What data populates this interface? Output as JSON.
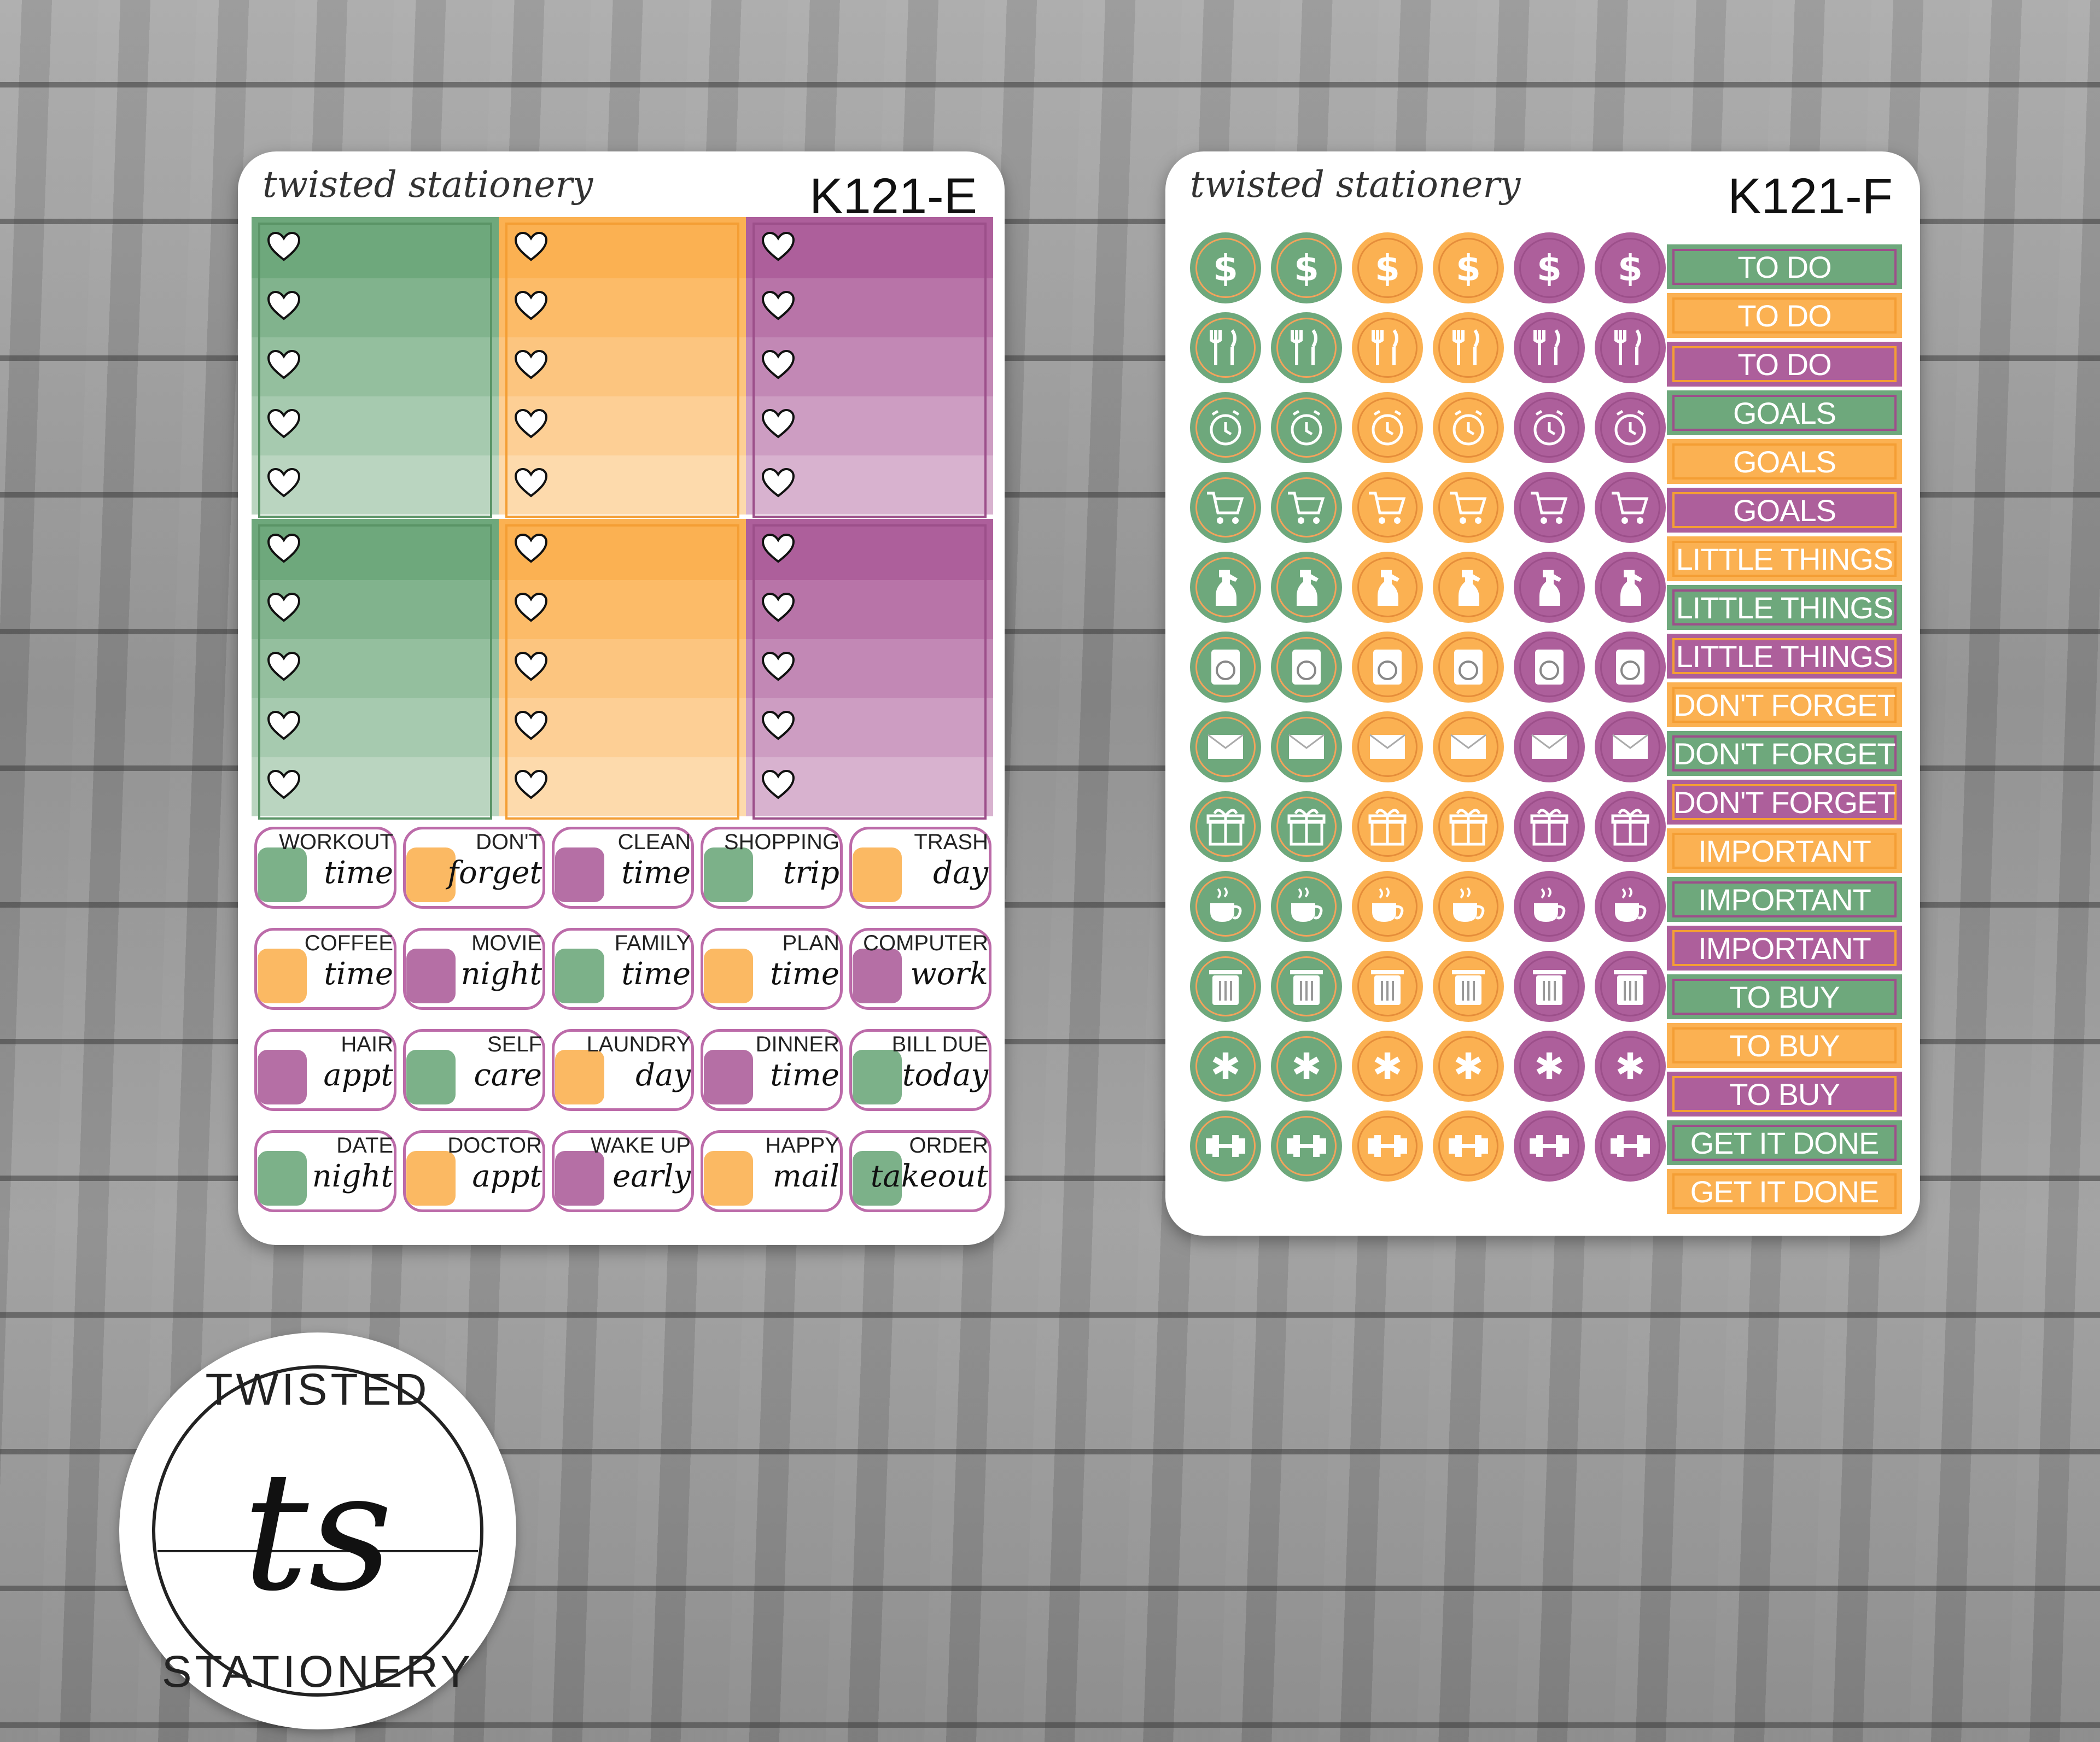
{
  "colors": {
    "green": "#6ea87c",
    "orange": "#fbb152",
    "purple": "#ad5f9b",
    "dark_green": "#5a9466",
    "dark_orange": "#f49e34",
    "dark_purple": "#9c4f8a"
  },
  "sheet_e": {
    "brand": "twisted stationery",
    "sku": "K121-E",
    "boxes": [
      {
        "color": "green"
      },
      {
        "color": "orange"
      },
      {
        "color": "purple"
      },
      {
        "color": "green"
      },
      {
        "color": "orange"
      },
      {
        "color": "purple"
      }
    ],
    "word_stickers": [
      {
        "line1": "WORKOUT",
        "line2": "time",
        "icon": "dumbbell-icon"
      },
      {
        "line1": "DON'T",
        "line2": "forget",
        "icon": "asterisk-icon"
      },
      {
        "line1": "CLEAN",
        "line2": "time",
        "icon": "spray-bottle-icon"
      },
      {
        "line1": "SHOPPING",
        "line2": "trip",
        "icon": "cart-icon"
      },
      {
        "line1": "TRASH",
        "line2": "day",
        "icon": "trash-icon"
      },
      {
        "line1": "COFFEE",
        "line2": "time",
        "icon": "coffee-cup-icon"
      },
      {
        "line1": "MOVIE",
        "line2": "night",
        "icon": "clapperboard-icon"
      },
      {
        "line1": "FAMILY",
        "line2": "time",
        "icon": "heart-icon"
      },
      {
        "line1": "PLAN",
        "line2": "time",
        "icon": "planner-icon"
      },
      {
        "line1": "COMPUTER",
        "line2": "work",
        "icon": "laptop-icon"
      },
      {
        "line1": "HAIR",
        "line2": "appt",
        "icon": "scissors-comb-icon"
      },
      {
        "line1": "SELF",
        "line2": "care",
        "icon": "face-mask-icon"
      },
      {
        "line1": "LAUNDRY",
        "line2": "day",
        "icon": "hanger-icon"
      },
      {
        "line1": "DINNER",
        "line2": "time",
        "icon": "utensils-icon"
      },
      {
        "line1": "BILL DUE",
        "line2": "today",
        "icon": "money-icon"
      },
      {
        "line1": "DATE",
        "line2": "night",
        "icon": "wine-glasses-icon"
      },
      {
        "line1": "DOCTOR",
        "line2": "appt",
        "icon": "stethoscope-icon"
      },
      {
        "line1": "WAKE UP",
        "line2": "early",
        "icon": "alarm-clock-icon"
      },
      {
        "line1": "HAPPY",
        "line2": "mail",
        "icon": "package-icon"
      },
      {
        "line1": "ORDER",
        "line2": "takeout",
        "icon": "takeout-icon"
      }
    ]
  },
  "sheet_f": {
    "brand": "twisted stationery",
    "sku": "K121-F",
    "icon_rows": [
      {
        "icon": "dollar-icon",
        "glyph": "$"
      },
      {
        "icon": "fork-knife-icon",
        "glyph": ""
      },
      {
        "icon": "alarm-clock-icon",
        "glyph": ""
      },
      {
        "icon": "cart-icon",
        "glyph": ""
      },
      {
        "icon": "spray-bottle-icon",
        "glyph": ""
      },
      {
        "icon": "washing-machine-icon",
        "glyph": ""
      },
      {
        "icon": "envelope-icon",
        "glyph": ""
      },
      {
        "icon": "gift-icon",
        "glyph": ""
      },
      {
        "icon": "coffee-cup-icon",
        "glyph": ""
      },
      {
        "icon": "trash-icon",
        "glyph": ""
      },
      {
        "icon": "asterisk-icon",
        "glyph": "✱"
      },
      {
        "icon": "dumbbell-icon",
        "glyph": ""
      }
    ],
    "labels": [
      {
        "text": "TO DO",
        "color": "green"
      },
      {
        "text": "TO DO",
        "color": "orange"
      },
      {
        "text": "TO DO",
        "color": "purple"
      },
      {
        "text": "GOALS",
        "color": "green"
      },
      {
        "text": "GOALS",
        "color": "orange"
      },
      {
        "text": "GOALS",
        "color": "purple"
      },
      {
        "text": "LITTLE THINGS",
        "color": "orange"
      },
      {
        "text": "LITTLE THINGS",
        "color": "green"
      },
      {
        "text": "LITTLE THINGS",
        "color": "purple"
      },
      {
        "text": "DON'T FORGET",
        "color": "orange"
      },
      {
        "text": "DON'T FORGET",
        "color": "green"
      },
      {
        "text": "DON'T FORGET",
        "color": "purple"
      },
      {
        "text": "IMPORTANT",
        "color": "orange"
      },
      {
        "text": "IMPORTANT",
        "color": "green"
      },
      {
        "text": "IMPORTANT",
        "color": "purple"
      },
      {
        "text": "TO BUY",
        "color": "green"
      },
      {
        "text": "TO BUY",
        "color": "orange"
      },
      {
        "text": "TO BUY",
        "color": "purple"
      },
      {
        "text": "GET IT DONE",
        "color": "green"
      },
      {
        "text": "GET IT DONE",
        "color": "orange"
      }
    ]
  },
  "logo": {
    "top": "TWISTED",
    "monogram": "ts",
    "bottom": "STATIONERY"
  }
}
